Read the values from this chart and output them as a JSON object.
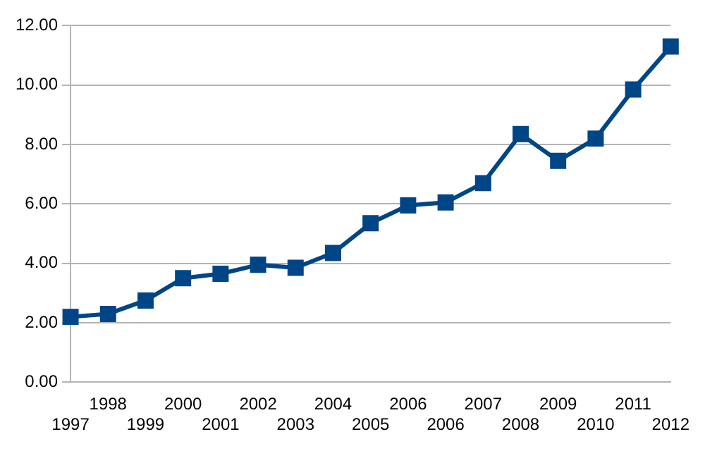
{
  "chart_data": {
    "type": "line",
    "categories": [
      "1997",
      "1998",
      "1999",
      "2000",
      "2001",
      "2002",
      "2003",
      "2004",
      "2005",
      "2006",
      "2006",
      "2007",
      "2008",
      "2009",
      "2010",
      "2011",
      "2012"
    ],
    "series": [
      {
        "color": "#004586",
        "values": [
          2.2,
          2.3,
          2.75,
          3.5,
          3.65,
          3.95,
          3.85,
          4.35,
          5.35,
          5.95,
          6.05,
          6.7,
          8.35,
          7.45,
          8.2,
          9.85,
          11.3
        ]
      }
    ],
    "ylim": [
      0,
      12
    ],
    "yticks": [
      {
        "value": 0,
        "label": "0.00"
      },
      {
        "value": 2,
        "label": "2.00"
      },
      {
        "value": 4,
        "label": "4.00"
      },
      {
        "value": 6,
        "label": "6.00"
      },
      {
        "value": 8,
        "label": "8.00"
      },
      {
        "value": 10,
        "label": "10.00"
      },
      {
        "value": 12,
        "label": "12.00"
      }
    ],
    "grid": "y",
    "legend": false,
    "marker": "square",
    "line_style": "solid"
  }
}
